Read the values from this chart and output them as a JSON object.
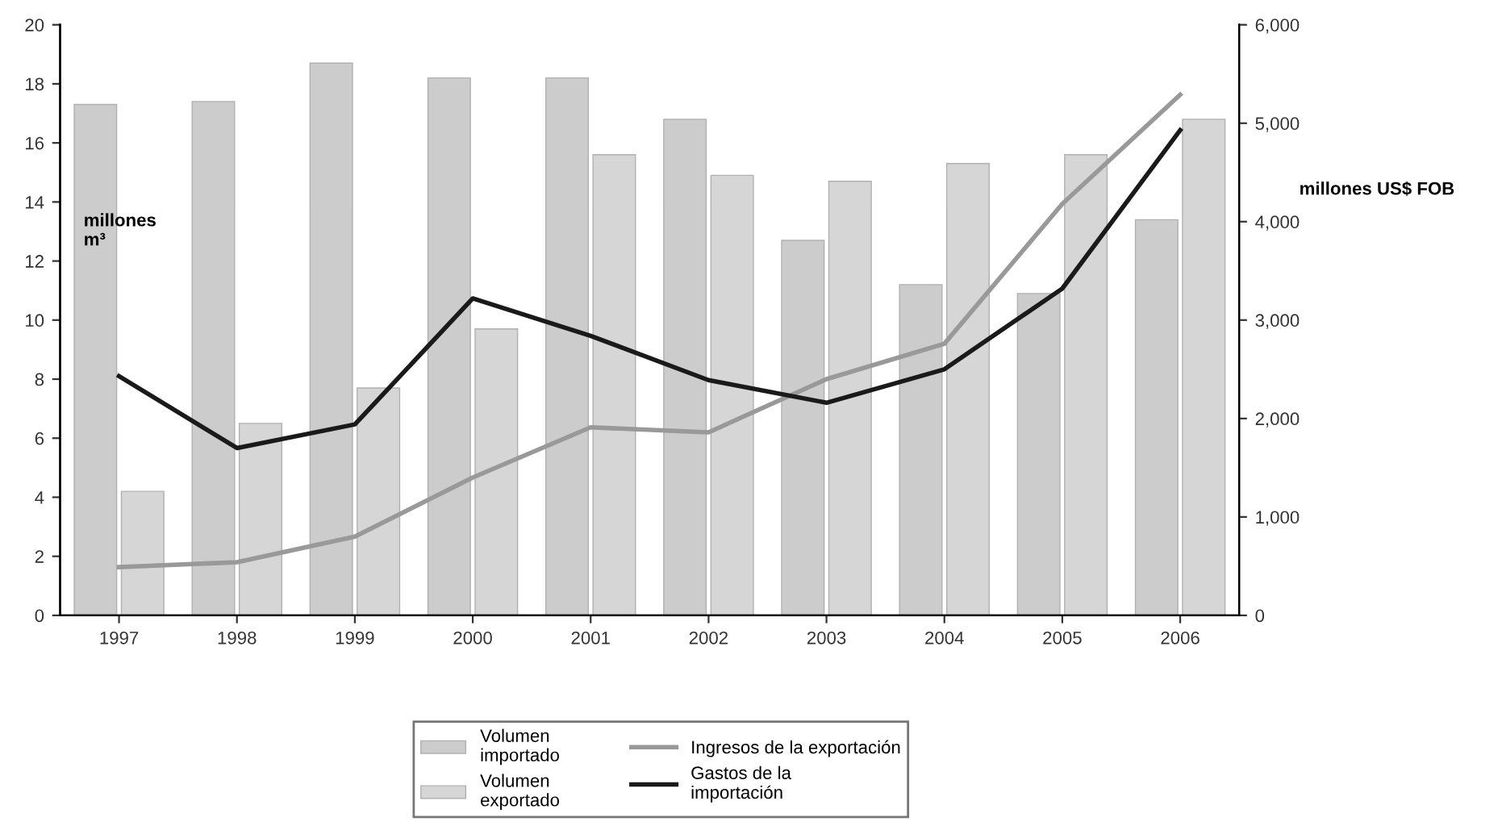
{
  "chart_data": {
    "type": "bar",
    "ylabel": "millones\nm³",
    "y2label": "millones US$ FOB",
    "categories": [
      "1997",
      "1998",
      "1999",
      "2000",
      "2001",
      "2002",
      "2003",
      "2004",
      "2005",
      "2006"
    ],
    "series": [
      {
        "name": "Volumen\nimportado",
        "color": "#cccccc",
        "values": [
          17.3,
          17.4,
          18.7,
          18.2,
          18.2,
          16.8,
          12.7,
          11.2,
          10.9,
          13.4
        ]
      },
      {
        "name": "Volumen\nexportado",
        "color": "#d6d6d6",
        "values": [
          4.2,
          6.5,
          7.7,
          9.7,
          15.6,
          14.9,
          14.7,
          15.3,
          15.6,
          16.8
        ]
      },
      {
        "name": "Ingresos de la exportación",
        "type": "line",
        "axis": "y2",
        "color": "#999999",
        "values": [
          490,
          540,
          800,
          1400,
          1910,
          1860,
          2400,
          2760,
          4180,
          5290
        ]
      },
      {
        "name": "Gastos de la\nimportación",
        "type": "line",
        "axis": "y2",
        "color": "#1a1a1a",
        "values": [
          2430,
          1700,
          1940,
          3220,
          2840,
          2390,
          2160,
          2500,
          3320,
          4930
        ]
      }
    ],
    "ylim": [
      0,
      20
    ],
    "yticks": [
      0,
      2,
      4,
      6,
      8,
      10,
      12,
      14,
      16,
      18,
      20
    ],
    "y2lim": [
      0,
      6000
    ],
    "y2ticks": [
      0,
      {
        "value": 1000,
        "label": "1,000"
      },
      {
        "value": 2000,
        "label": "2,000"
      },
      {
        "value": 3000,
        "label": "3,000"
      },
      {
        "value": 4000,
        "label": "4,000"
      },
      {
        "value": 5000,
        "label": "5,000"
      },
      {
        "value": 6000,
        "label": "6,000"
      }
    ],
    "grid": false,
    "legend": "bottom",
    "marker": "none",
    "line_style": "solid"
  }
}
